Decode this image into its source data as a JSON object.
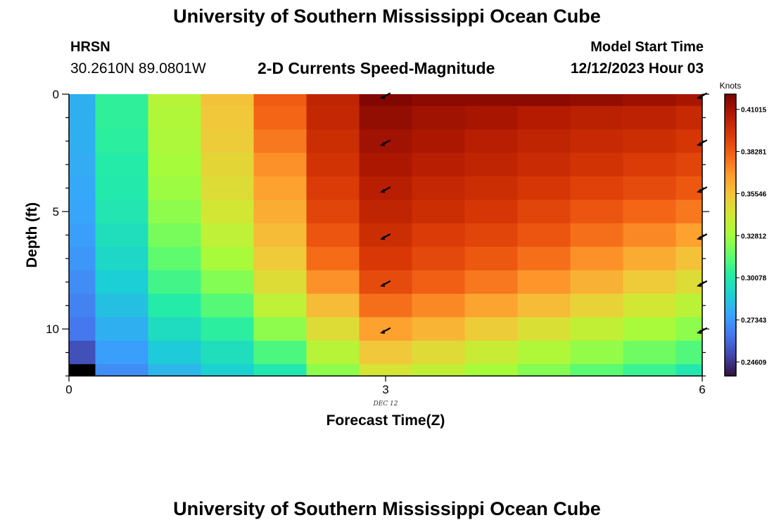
{
  "header": {
    "title": "University of Southern Mississippi Ocean Cube",
    "station_name": "HRSN",
    "station_coords": "30.2610N  89.0801W",
    "plot_title": "2-D Currents Speed-Magnitude",
    "model_start_label": "Model Start Time",
    "model_start_value": "12/12/2023 Hour 03"
  },
  "footer": {
    "title": "University of Southern Mississippi Ocean Cube"
  },
  "chart_data": {
    "type": "heatmap",
    "xlabel": "Forecast Time(Z)",
    "ylabel": "Depth (ft)",
    "x_ticks": [
      "0",
      "3",
      "6"
    ],
    "x_date_label": "DEC 12",
    "y_ticks": [
      "0",
      "5",
      "10"
    ],
    "xlim": [
      0,
      6
    ],
    "ylim": [
      0,
      12
    ],
    "y_inverted": true,
    "x_cell_centers": [
      0,
      0.5,
      1,
      1.5,
      2,
      2.5,
      3,
      3.5,
      4,
      4.5,
      5,
      5.5,
      6
    ],
    "depth_cell_centers": [
      0,
      1,
      2,
      3,
      4,
      5,
      6,
      7,
      8,
      9,
      10,
      11,
      12
    ],
    "colorbar": {
      "label": "Knots",
      "ticks": [
        "0.41015",
        "0.38281",
        "0.35546",
        "0.32812",
        "0.30078",
        "0.27343",
        "0.24609"
      ],
      "tick_values": [
        0.41015,
        0.38281,
        0.35546,
        0.32812,
        0.30078,
        0.27343,
        0.24609
      ],
      "range": [
        0.237,
        0.42
      ],
      "colormap": "turbo"
    },
    "values": [
      [
        0.28,
        0.305,
        0.334,
        0.356,
        0.383,
        0.402,
        0.418,
        0.416,
        0.416,
        0.416,
        0.414,
        0.412,
        0.409
      ],
      [
        0.28,
        0.305,
        0.332,
        0.354,
        0.38,
        0.401,
        0.414,
        0.411,
        0.409,
        0.406,
        0.404,
        0.403,
        0.4
      ],
      [
        0.28,
        0.304,
        0.331,
        0.352,
        0.376,
        0.398,
        0.411,
        0.408,
        0.405,
        0.402,
        0.4,
        0.398,
        0.395
      ],
      [
        0.279,
        0.302,
        0.329,
        0.349,
        0.37,
        0.396,
        0.408,
        0.405,
        0.402,
        0.399,
        0.396,
        0.393,
        0.39
      ],
      [
        0.278,
        0.301,
        0.327,
        0.346,
        0.366,
        0.393,
        0.405,
        0.401,
        0.398,
        0.395,
        0.391,
        0.388,
        0.384
      ],
      [
        0.277,
        0.299,
        0.324,
        0.342,
        0.362,
        0.39,
        0.402,
        0.398,
        0.395,
        0.39,
        0.385,
        0.38,
        0.376
      ],
      [
        0.275,
        0.296,
        0.32,
        0.336,
        0.358,
        0.385,
        0.398,
        0.393,
        0.39,
        0.385,
        0.378,
        0.372,
        0.366
      ],
      [
        0.273,
        0.293,
        0.315,
        0.33,
        0.353,
        0.379,
        0.394,
        0.389,
        0.384,
        0.378,
        0.37,
        0.363,
        0.356
      ],
      [
        0.27,
        0.289,
        0.309,
        0.322,
        0.346,
        0.37,
        0.388,
        0.382,
        0.376,
        0.369,
        0.361,
        0.353,
        0.346
      ],
      [
        0.267,
        0.285,
        0.302,
        0.313,
        0.336,
        0.358,
        0.378,
        0.372,
        0.365,
        0.358,
        0.35,
        0.342,
        0.335
      ],
      [
        0.264,
        0.28,
        0.295,
        0.304,
        0.324,
        0.346,
        0.366,
        0.36,
        0.352,
        0.345,
        0.337,
        0.33,
        0.324
      ],
      [
        0.253,
        0.275,
        0.288,
        0.296,
        0.311,
        0.334,
        0.354,
        0.347,
        0.339,
        0.332,
        0.325,
        0.318,
        0.312
      ],
      [
        0.237,
        0.27,
        0.282,
        0.29,
        0.3,
        0.324,
        0.343,
        0.337,
        0.329,
        0.322,
        0.314,
        0.307,
        0.3
      ]
    ],
    "arrows": {
      "x": [
        3,
        6
      ],
      "depth": [
        0,
        2,
        4,
        6,
        8,
        10
      ],
      "direction": "southwest"
    }
  }
}
